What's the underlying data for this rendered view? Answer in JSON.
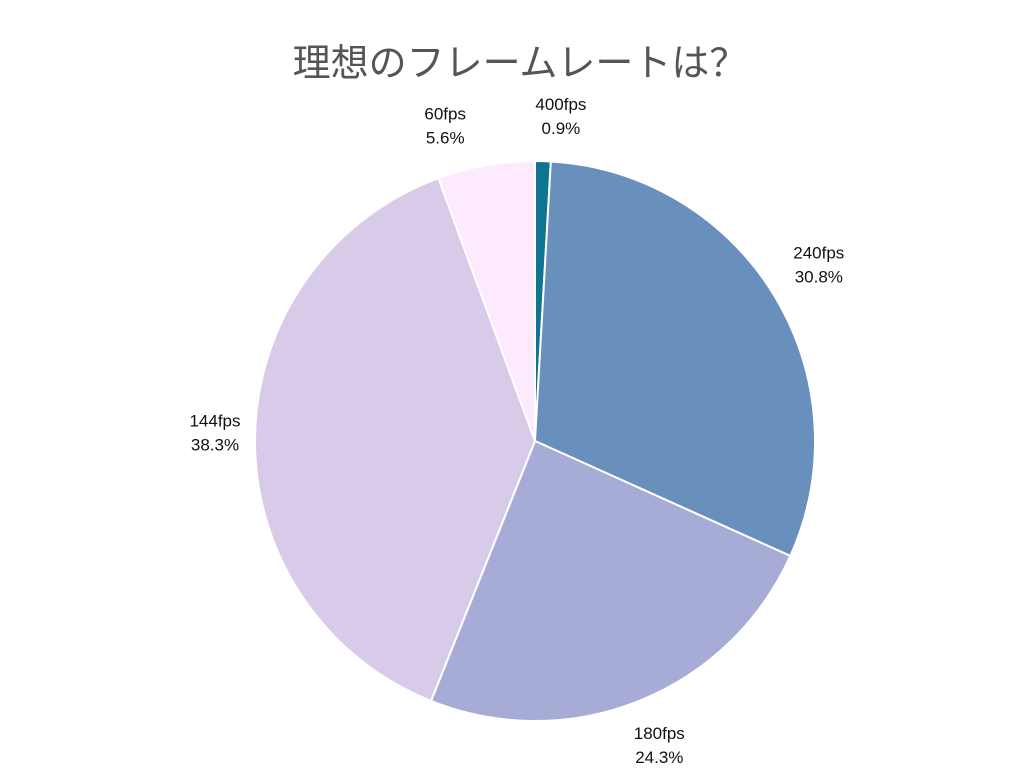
{
  "chart_data": {
    "type": "pie",
    "title": "理想のフレームレートは？",
    "slices": [
      {
        "label": "400fps",
        "percent_label": "0.9%",
        "value": 0.9,
        "color": "#0e7490"
      },
      {
        "label": "240fps",
        "percent_label": "30.8%",
        "value": 30.8,
        "color": "#6990bc"
      },
      {
        "label": "180fps",
        "percent_label": "24.3%",
        "value": 24.3,
        "color": "#a6acd6"
      },
      {
        "label": "144fps",
        "percent_label": "38.3%",
        "value": 38.3,
        "color": "#d8cbe9"
      },
      {
        "label": "60fps",
        "percent_label": "5.6%",
        "value": 5.6,
        "color": "#fdeafd"
      }
    ],
    "start_angle": "12 o'clock",
    "direction": "clockwise",
    "legend": "none"
  }
}
